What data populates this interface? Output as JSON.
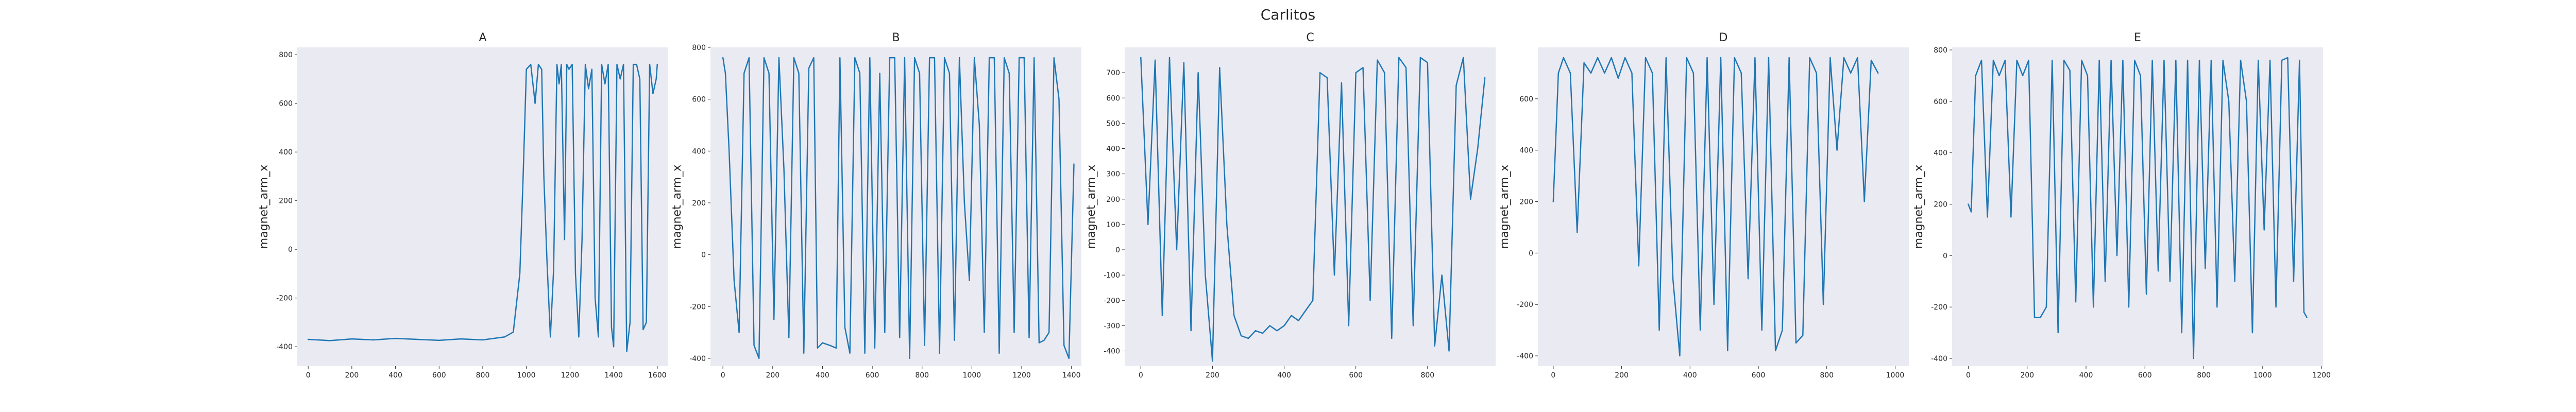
{
  "figure": {
    "suptitle": "Carlitos"
  },
  "chart_data": [
    {
      "type": "line",
      "title": "A",
      "xlabel": "",
      "ylabel": "magnet_arm_x",
      "xlim": [
        -50,
        1650
      ],
      "ylim": [
        -480,
        830
      ],
      "xticks": [
        0,
        200,
        400,
        600,
        800,
        1000,
        1200,
        1400,
        1600
      ],
      "yticks": [
        -400,
        -200,
        0,
        200,
        400,
        600,
        800
      ],
      "grid": false,
      "x": [
        0,
        100,
        200,
        300,
        400,
        500,
        600,
        700,
        800,
        900,
        940,
        970,
        985,
        1000,
        1020,
        1040,
        1055,
        1070,
        1080,
        1095,
        1110,
        1125,
        1140,
        1150,
        1160,
        1175,
        1185,
        1195,
        1210,
        1225,
        1240,
        1255,
        1270,
        1285,
        1300,
        1315,
        1330,
        1345,
        1360,
        1375,
        1390,
        1400,
        1415,
        1430,
        1445,
        1460,
        1475,
        1490,
        1505,
        1520,
        1535,
        1550,
        1565,
        1580,
        1595,
        1600
      ],
      "values": [
        -370,
        -375,
        -368,
        -372,
        -366,
        -370,
        -374,
        -368,
        -372,
        -360,
        -340,
        -100,
        300,
        740,
        760,
        600,
        760,
        740,
        300,
        -60,
        -360,
        -80,
        760,
        680,
        760,
        40,
        760,
        740,
        760,
        -100,
        -360,
        40,
        760,
        660,
        740,
        -200,
        -360,
        760,
        680,
        760,
        -320,
        -400,
        760,
        700,
        760,
        -420,
        -300,
        760,
        760,
        700,
        -330,
        -300,
        760,
        640,
        700,
        760
      ]
    },
    {
      "type": "line",
      "title": "B",
      "xlabel": "",
      "ylabel": "magnet_arm_x",
      "xlim": [
        -50,
        1440
      ],
      "ylim": [
        -430,
        800
      ],
      "xticks": [
        0,
        200,
        400,
        600,
        800,
        1000,
        1200,
        1400
      ],
      "yticks": [
        -400,
        -200,
        0,
        200,
        400,
        600,
        800
      ],
      "grid": false,
      "x": [
        0,
        10,
        25,
        45,
        65,
        85,
        105,
        125,
        145,
        165,
        185,
        205,
        225,
        245,
        265,
        285,
        305,
        325,
        345,
        365,
        380,
        400,
        430,
        455,
        470,
        490,
        510,
        530,
        550,
        570,
        590,
        610,
        630,
        650,
        670,
        690,
        710,
        730,
        750,
        770,
        790,
        810,
        830,
        850,
        870,
        890,
        910,
        930,
        950,
        970,
        990,
        1010,
        1030,
        1050,
        1070,
        1090,
        1110,
        1130,
        1150,
        1170,
        1190,
        1210,
        1230,
        1250,
        1270,
        1290,
        1310,
        1330,
        1350,
        1370,
        1390,
        1410
      ],
      "values": [
        760,
        700,
        400,
        -100,
        -300,
        700,
        760,
        -350,
        -400,
        760,
        700,
        -250,
        760,
        330,
        -320,
        760,
        700,
        -380,
        720,
        760,
        -360,
        -340,
        -350,
        -360,
        760,
        -280,
        -380,
        760,
        700,
        -380,
        760,
        -360,
        700,
        -300,
        760,
        760,
        -320,
        760,
        -400,
        760,
        700,
        -350,
        760,
        760,
        -380,
        760,
        700,
        -330,
        760,
        200,
        -100,
        760,
        500,
        -300,
        760,
        760,
        -380,
        760,
        700,
        -300,
        760,
        760,
        -320,
        760,
        -340,
        -330,
        -300,
        760,
        600,
        -350,
        -400,
        350
      ]
    },
    {
      "type": "line",
      "title": "C",
      "xlabel": "",
      "ylabel": "magnet_arm_x",
      "xlim": [
        -45,
        990
      ],
      "ylim": [
        -460,
        800
      ],
      "xticks": [
        0,
        200,
        400,
        600,
        800
      ],
      "yticks": [
        -400,
        -300,
        -200,
        -100,
        0,
        100,
        200,
        300,
        400,
        500,
        600,
        700
      ],
      "grid": false,
      "x": [
        0,
        20,
        40,
        60,
        80,
        100,
        120,
        140,
        160,
        180,
        200,
        220,
        240,
        260,
        280,
        300,
        320,
        340,
        360,
        380,
        400,
        420,
        440,
        460,
        480,
        500,
        520,
        540,
        560,
        580,
        600,
        620,
        640,
        660,
        680,
        700,
        720,
        740,
        760,
        780,
        800,
        820,
        840,
        860,
        880,
        900,
        920,
        940,
        960
      ],
      "values": [
        760,
        100,
        750,
        -260,
        760,
        0,
        740,
        -320,
        700,
        -100,
        -440,
        720,
        100,
        -260,
        -340,
        -350,
        -320,
        -330,
        -300,
        -320,
        -300,
        -260,
        -280,
        -240,
        -200,
        700,
        680,
        -100,
        660,
        -300,
        700,
        720,
        -200,
        750,
        700,
        -350,
        760,
        720,
        -300,
        760,
        740,
        -380,
        -100,
        -400,
        650,
        760,
        200,
        400,
        680
      ]
    },
    {
      "type": "line",
      "title": "D",
      "xlabel": "",
      "ylabel": "magnet_arm_x",
      "xlim": [
        -45,
        1040
      ],
      "ylim": [
        -440,
        800
      ],
      "xticks": [
        0,
        200,
        400,
        600,
        800,
        1000
      ],
      "yticks": [
        -400,
        -200,
        0,
        200,
        400,
        600
      ],
      "grid": false,
      "x": [
        0,
        15,
        30,
        50,
        70,
        90,
        110,
        130,
        150,
        170,
        190,
        210,
        230,
        250,
        270,
        290,
        310,
        330,
        350,
        370,
        390,
        410,
        430,
        450,
        470,
        490,
        510,
        530,
        550,
        570,
        590,
        610,
        630,
        650,
        670,
        690,
        710,
        730,
        750,
        770,
        790,
        810,
        830,
        850,
        870,
        890,
        910,
        930,
        950
      ],
      "values": [
        200,
        700,
        760,
        700,
        80,
        740,
        700,
        760,
        700,
        760,
        680,
        760,
        700,
        -50,
        760,
        700,
        -300,
        760,
        -100,
        -400,
        760,
        700,
        -300,
        760,
        -200,
        760,
        -380,
        760,
        700,
        -100,
        760,
        -300,
        760,
        -380,
        -300,
        760,
        -350,
        -320,
        760,
        700,
        -200,
        760,
        400,
        760,
        700,
        760,
        200,
        750,
        700
      ]
    },
    {
      "type": "line",
      "title": "E",
      "xlabel": "",
      "ylabel": "magnet_arm_x",
      "xlim": [
        -55,
        1205
      ],
      "ylim": [
        -430,
        810
      ],
      "xticks": [
        0,
        200,
        400,
        600,
        800,
        1000,
        1200
      ],
      "yticks": [
        -400,
        -200,
        0,
        200,
        400,
        600,
        800
      ],
      "grid": false,
      "x": [
        0,
        10,
        25,
        45,
        65,
        85,
        105,
        125,
        145,
        165,
        185,
        205,
        225,
        245,
        265,
        285,
        305,
        325,
        345,
        365,
        385,
        405,
        425,
        445,
        465,
        485,
        505,
        525,
        545,
        565,
        585,
        605,
        625,
        645,
        665,
        685,
        705,
        725,
        745,
        765,
        785,
        805,
        825,
        845,
        865,
        885,
        905,
        925,
        945,
        965,
        985,
        1005,
        1025,
        1045,
        1065,
        1085,
        1105,
        1125,
        1140,
        1150
      ],
      "values": [
        200,
        170,
        700,
        760,
        150,
        760,
        700,
        760,
        150,
        760,
        700,
        760,
        -240,
        -240,
        -200,
        760,
        -300,
        760,
        720,
        -180,
        760,
        700,
        -200,
        760,
        -100,
        760,
        0,
        760,
        -200,
        760,
        700,
        -150,
        760,
        -60,
        760,
        -100,
        760,
        -300,
        760,
        -400,
        760,
        -50,
        760,
        -200,
        760,
        600,
        -100,
        760,
        600,
        -300,
        760,
        100,
        760,
        -200,
        760,
        770,
        -100,
        760,
        -220,
        -240
      ]
    }
  ]
}
